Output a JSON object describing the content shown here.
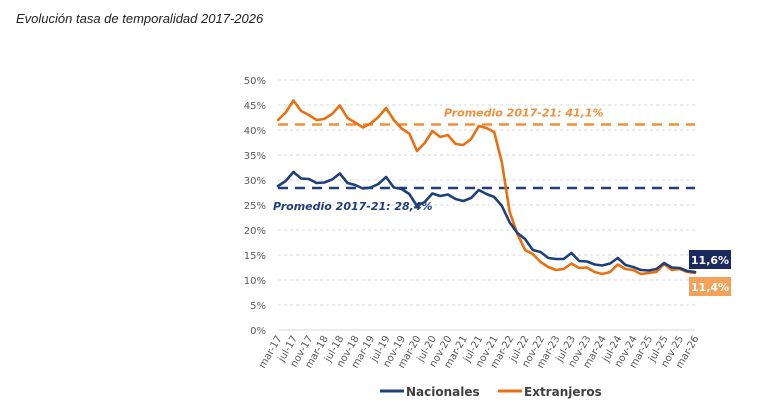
{
  "title": "Evolución tasa de temporalidad 2017-2026",
  "chart_data": {
    "type": "line",
    "title": "Evolución tasa de temporalidad 2017-2026",
    "xlabel": "",
    "ylabel": "",
    "ylim": [
      0,
      50
    ],
    "yticks": [
      "0%",
      "5%",
      "10%",
      "15%",
      "20%",
      "25%",
      "30%",
      "35%",
      "40%",
      "45%",
      "50%"
    ],
    "grid": true,
    "legend_position": "bottom",
    "x_tick_labels": [
      "mar-17",
      "jul-17",
      "nov-17",
      "mar-18",
      "jul-18",
      "nov-18",
      "mar-19",
      "jul-19",
      "nov-19",
      "mar-20",
      "jul-20",
      "nov-20",
      "mar-21",
      "jul-21",
      "nov-21",
      "mar-22",
      "jul-22",
      "nov-22",
      "mar-23",
      "jul-23",
      "nov-23",
      "mar-24",
      "jul-24",
      "nov-24",
      "mar-25",
      "jul-25",
      "nov-25",
      "mar-26"
    ],
    "x_sample_months": [
      "mar-17",
      "may-17",
      "jul-17",
      "sep-17",
      "nov-17",
      "ene-18",
      "mar-18",
      "may-18",
      "jul-18",
      "sep-18",
      "nov-18",
      "ene-19",
      "mar-19",
      "may-19",
      "jul-19",
      "sep-19",
      "nov-19",
      "ene-20",
      "mar-20",
      "may-20",
      "jul-20",
      "sep-20",
      "nov-20",
      "ene-21",
      "mar-21",
      "may-21",
      "jul-21",
      "sep-21",
      "nov-21",
      "ene-22",
      "mar-22",
      "may-22",
      "jul-22",
      "sep-22",
      "nov-22",
      "ene-23",
      "mar-23",
      "may-23",
      "jul-23",
      "sep-23",
      "nov-23",
      "ene-24",
      "mar-24",
      "may-24",
      "jul-24",
      "sep-24",
      "nov-24",
      "ene-25",
      "mar-25",
      "may-25",
      "jul-25",
      "sep-25",
      "nov-25",
      "ene-26",
      "mar-26"
    ],
    "series": [
      {
        "name": "Nacionales",
        "color": "#1f3f7a",
        "values": [
          28.8,
          29.8,
          31.6,
          30.3,
          30.2,
          29.4,
          29.5,
          30.1,
          31.3,
          29.4,
          29.0,
          28.3,
          28.5,
          29.2,
          30.6,
          28.5,
          28.2,
          27.2,
          24.8,
          25.6,
          27.3,
          26.8,
          27.1,
          26.2,
          25.8,
          26.4,
          28.0,
          27.2,
          26.6,
          24.8,
          21.5,
          19.4,
          18.2,
          16.0,
          15.6,
          14.4,
          14.2,
          14.2,
          15.4,
          13.8,
          13.7,
          13.1,
          12.9,
          13.3,
          14.4,
          13.0,
          12.6,
          12.0,
          11.9,
          12.2,
          13.4,
          12.5,
          12.4,
          11.8,
          11.6
        ]
      },
      {
        "name": "Extranjeros",
        "color": "#e8700f",
        "values": [
          42.0,
          43.5,
          45.9,
          43.8,
          43.0,
          42.0,
          42.2,
          43.2,
          44.9,
          42.4,
          41.5,
          40.5,
          41.3,
          42.6,
          44.4,
          42.0,
          40.3,
          39.3,
          35.8,
          37.4,
          39.8,
          38.6,
          39.0,
          37.2,
          37.0,
          38.2,
          40.8,
          40.4,
          39.6,
          33.5,
          23.6,
          19.2,
          16.0,
          15.2,
          13.6,
          12.6,
          12.0,
          12.2,
          13.3,
          12.4,
          12.5,
          11.6,
          11.2,
          11.6,
          13.1,
          12.2,
          12.0,
          11.2,
          11.4,
          11.6,
          13.2,
          12.0,
          12.2,
          11.6,
          11.4
        ]
      }
    ],
    "averages": [
      {
        "name": "Promedio Extranjeros 2017-21",
        "value": 41.1,
        "label": "Promedio 2017-21: 41,1%",
        "color": "#f0903a"
      },
      {
        "name": "Promedio Nacionales 2017-21",
        "value": 28.4,
        "label": "Promedio 2017-21: 28,4%",
        "color": "#1f3f7a"
      }
    ],
    "end_labels": [
      {
        "series": "Nacionales",
        "label": "11,6%",
        "bg": "#1b2a5c"
      },
      {
        "series": "Extranjeros",
        "label": "11,4%",
        "bg": "#f4a259"
      }
    ]
  }
}
